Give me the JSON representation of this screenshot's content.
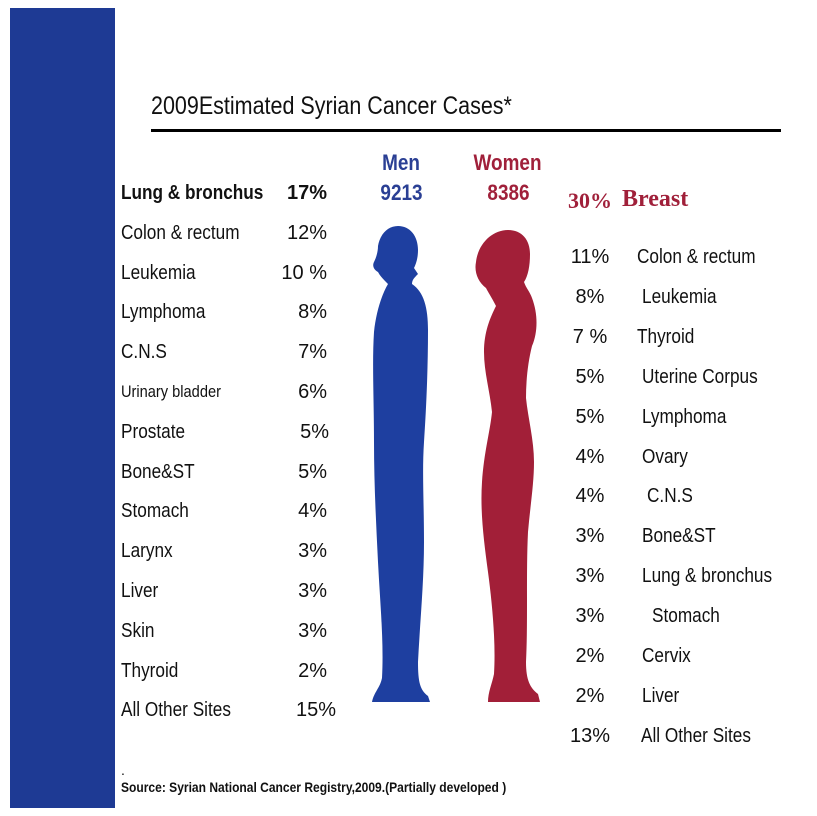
{
  "title": "2009Estimated Syrian Cancer Cases*",
  "colors": {
    "sidebar": "#1e3a94",
    "men": "#2a3f94",
    "women": "#a0203a"
  },
  "chart_data": {
    "type": "table",
    "title": "2009Estimated Syrian Cancer Cases*",
    "series": [
      {
        "name": "Men",
        "total": "9213",
        "rows": [
          {
            "site": "Lung & bronchus",
            "pct": "17%",
            "value": 17
          },
          {
            "site": "Colon & rectum",
            "pct": "12%",
            "value": 12
          },
          {
            "site": "Leukemia",
            "pct": "10 %",
            "value": 10
          },
          {
            "site": "Lymphoma",
            "pct": "8%",
            "value": 8
          },
          {
            "site": "C.N.S",
            "pct": "7%",
            "value": 7
          },
          {
            "site": "Urinary bladder",
            "pct": "6%",
            "value": 6
          },
          {
            "site": "Prostate",
            "pct": "5%",
            "value": 5
          },
          {
            "site": "Bone&ST",
            "pct": "5%",
            "value": 5
          },
          {
            "site": "Stomach",
            "pct": "4%",
            "value": 4
          },
          {
            "site": "Larynx",
            "pct": "3%",
            "value": 3
          },
          {
            "site": "Liver",
            "pct": "3%",
            "value": 3
          },
          {
            "site": "Skin",
            "pct": "3%",
            "value": 3
          },
          {
            "site": "Thyroid",
            "pct": "2%",
            "value": 2
          },
          {
            "site": "All Other Sites",
            "pct": "15%",
            "value": 15
          }
        ]
      },
      {
        "name": "Women",
        "total": "8386",
        "rows": [
          {
            "site": "Breast",
            "pct": "30%",
            "value": 30
          },
          {
            "site": "Colon & rectum",
            "pct": "11%",
            "value": 11
          },
          {
            "site": "Leukemia",
            "pct": "8%",
            "value": 8
          },
          {
            "site": "Thyroid",
            "pct": "7 %",
            "value": 7
          },
          {
            "site": "Uterine Corpus",
            "pct": "5%",
            "value": 5
          },
          {
            "site": "Lymphoma",
            "pct": "5%",
            "value": 5
          },
          {
            "site": "Ovary",
            "pct": "4%",
            "value": 4
          },
          {
            "site": "C.N.S",
            "pct": "4%",
            "value": 4
          },
          {
            "site": "Bone&ST",
            "pct": "3%",
            "value": 3
          },
          {
            "site": "Lung & bronchus",
            "pct": "3%",
            "value": 3
          },
          {
            "site": "Stomach",
            "pct": "3%",
            "value": 3
          },
          {
            "site": "Cervix",
            "pct": "2%",
            "value": 2
          },
          {
            "site": "Liver",
            "pct": "2%",
            "value": 2
          },
          {
            "site": "All Other Sites",
            "pct": "13%",
            "value": 13
          }
        ]
      }
    ]
  },
  "footnote_marker": ".",
  "source": "Source: Syrian National Cancer Registry,2009.(Partially developed )"
}
